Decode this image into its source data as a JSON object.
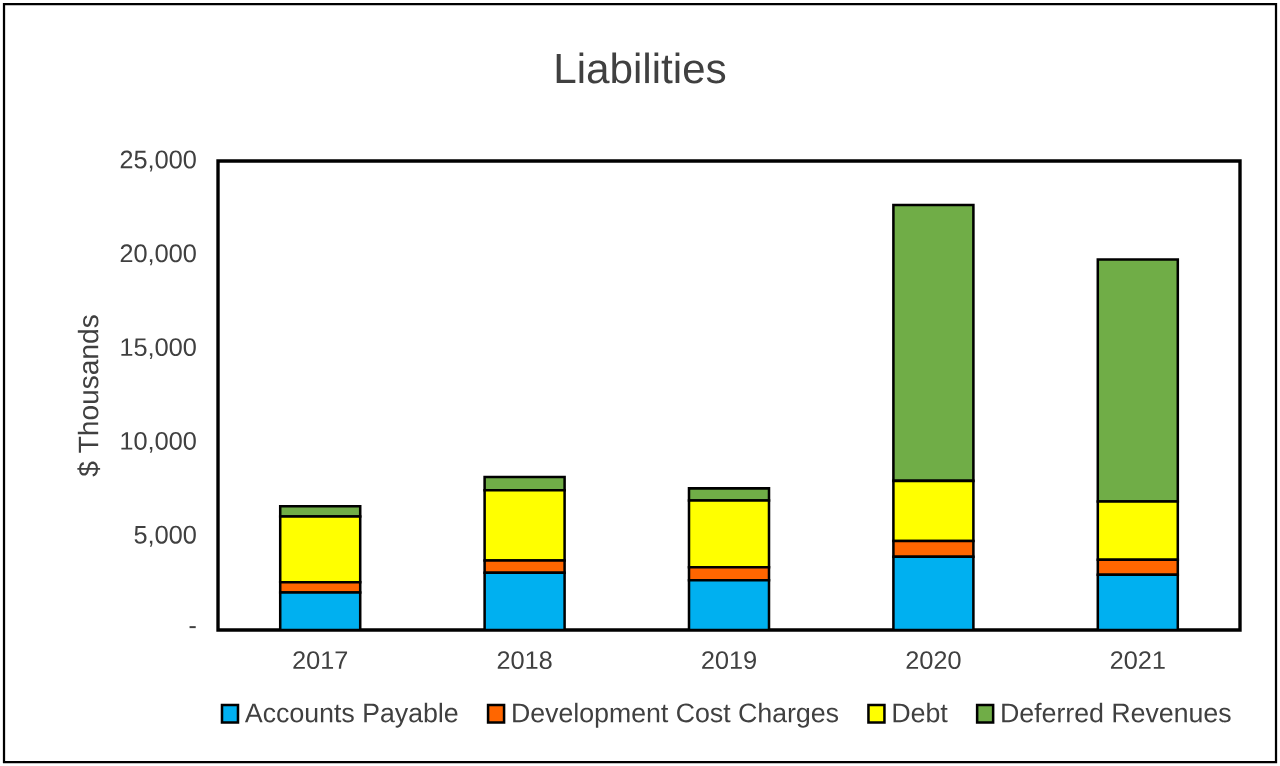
{
  "chart_data": {
    "type": "bar",
    "stacked": true,
    "title": "Liabilities",
    "ylabel": "$ Thousands",
    "categories": [
      "2017",
      "2018",
      "2019",
      "2020",
      "2021"
    ],
    "series": [
      {
        "name": "Accounts Payable",
        "color": "#00b0f0",
        "values": [
          2000,
          3050,
          2650,
          3900,
          2950
        ]
      },
      {
        "name": "Development Cost Charges",
        "color": "#ff6600",
        "values": [
          550,
          650,
          700,
          850,
          800
        ]
      },
      {
        "name": "Debt",
        "color": "#ffff00",
        "values": [
          3500,
          3750,
          3550,
          3200,
          3100
        ]
      },
      {
        "name": "Deferred Revenues",
        "color": "#70ad47",
        "values": [
          550,
          700,
          650,
          14700,
          12900
        ]
      }
    ],
    "ylim": [
      0,
      25000
    ],
    "yticks": [
      {
        "value": 0,
        "label": "-"
      },
      {
        "value": 5000,
        "label": "5,000"
      },
      {
        "value": 10000,
        "label": "10,000"
      },
      {
        "value": 15000,
        "label": "15,000"
      },
      {
        "value": 20000,
        "label": "20,000"
      },
      {
        "value": 25000,
        "label": "25,000"
      }
    ],
    "grid": false,
    "legend": "bottom"
  }
}
